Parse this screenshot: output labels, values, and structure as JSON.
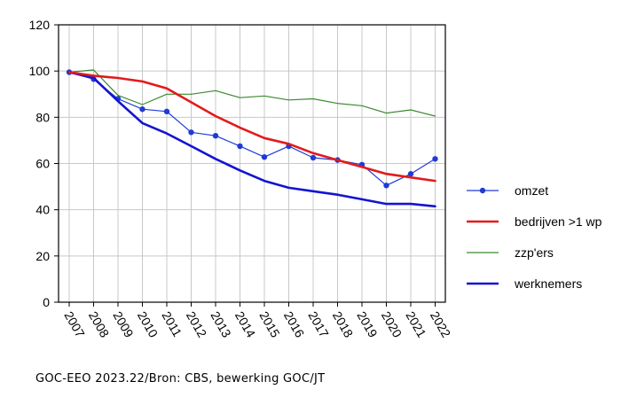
{
  "source_note": "GOC-EEO 2023.22/Bron: CBS, bewerking GOC/JT",
  "chart_data": {
    "type": "line",
    "x": [
      "2007",
      "2008",
      "2009",
      "2010",
      "2011",
      "2012",
      "2013",
      "2014",
      "2015",
      "2016",
      "2017",
      "2018",
      "2019",
      "2020",
      "2021",
      "2022"
    ],
    "ylim": [
      0,
      120
    ],
    "yticks": [
      0,
      20,
      40,
      60,
      80,
      100,
      120
    ],
    "grid": true,
    "legend_position": "right",
    "series": [
      {
        "name": "omzet",
        "color": "#1f3bd6",
        "marker": "circle",
        "width": 1.2,
        "values": [
          99.5,
          96.5,
          88,
          83.5,
          82.5,
          73.5,
          72,
          67.5,
          62.8,
          67.5,
          62.5,
          61.5,
          59.5,
          50.5,
          55.5,
          62
        ]
      },
      {
        "name": "bedrijven >1 wp",
        "color": "#e31a1c",
        "marker": "none",
        "width": 2.6,
        "values": [
          99.5,
          98,
          97,
          95.5,
          92.5,
          86.5,
          80.5,
          75.5,
          71,
          68.5,
          64.5,
          61.5,
          58.5,
          55.5,
          54,
          52.5
        ]
      },
      {
        "name": "zzp'ers",
        "color": "#3a8a2e",
        "marker": "none",
        "width": 1.2,
        "values": [
          99.5,
          100.5,
          89.5,
          85.5,
          90,
          90,
          91.5,
          88.5,
          89.2,
          87.5,
          88,
          86,
          85,
          81.8,
          83.2,
          80.5
        ]
      },
      {
        "name": "werknemers",
        "color": "#1414d2",
        "marker": "none",
        "width": 2.6,
        "values": [
          99.5,
          97,
          87,
          77.5,
          73,
          67.5,
          62,
          57,
          52.5,
          49.5,
          48,
          46.5,
          44.5,
          42.5,
          42.5,
          41.5
        ]
      }
    ]
  }
}
